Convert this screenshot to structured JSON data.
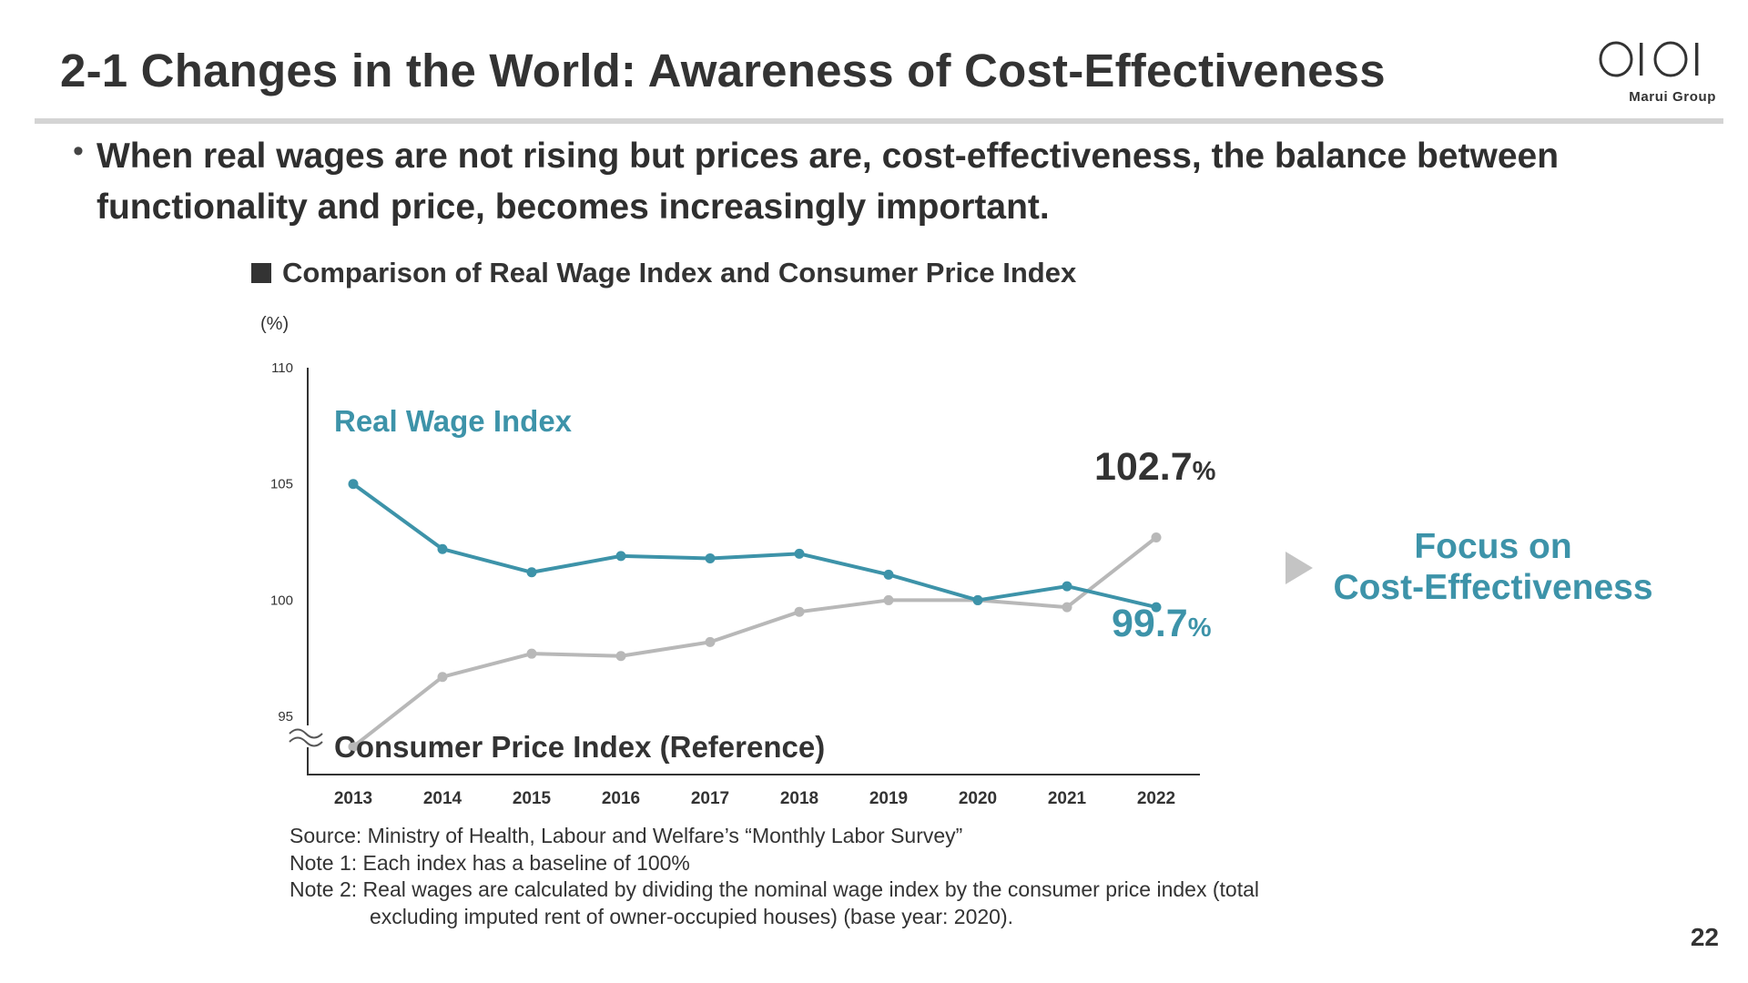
{
  "header": {
    "title": "2-1 Changes in the World: Awareness of Cost-Effectiveness",
    "logo_text": "Marui Group"
  },
  "bullet": {
    "marker": "•",
    "text": "When real wages are not rising but prices are, cost-effectiveness, the balance between functionality and price, becomes increasingly important."
  },
  "chart_heading": "Comparison of Real Wage Index and Consumer Price Index",
  "focus": {
    "line1": "Focus on",
    "line2": "Cost-Effectiveness"
  },
  "notes": {
    "source": "Source: Ministry of Health, Labour and Welfare’s “Monthly Labor Survey”",
    "note1": "Note 1: Each index has a baseline of 100%",
    "note2_line1": "Note 2: Real wages are calculated by dividing the nominal wage index by the consumer price index (total",
    "note2_line2": "excluding imputed rent of owner-occupied houses) (base year: 2020)."
  },
  "page_number": "22",
  "colors": {
    "real_wage": "#3d93a9",
    "cpi": "#b8b8b8",
    "text_dark": "#333333",
    "rule": "#d4d4d4",
    "arrow": "#c4c4c4"
  },
  "chart_data": {
    "type": "line",
    "title": "Comparison of Real Wage Index and Consumer Price Index",
    "unit_label": "(%)",
    "categories": [
      "2013",
      "2014",
      "2015",
      "2016",
      "2017",
      "2018",
      "2019",
      "2020",
      "2021",
      "2022"
    ],
    "y_ticks": [
      95,
      100,
      105,
      110
    ],
    "ylim": [
      92.5,
      110
    ],
    "axis_break": true,
    "grid": false,
    "series": [
      {
        "name": "Real Wage Index",
        "color": "#3d93a9",
        "values": [
          105.0,
          102.2,
          101.2,
          101.9,
          101.8,
          102.0,
          101.1,
          100.0,
          100.6,
          99.7
        ],
        "end_label": "99.7",
        "end_label_unit": "%"
      },
      {
        "name": "Consumer Price Index (Reference)",
        "color": "#b8b8b8",
        "values": [
          93.7,
          96.7,
          97.7,
          97.6,
          98.2,
          99.5,
          100.0,
          100.0,
          99.7,
          102.7
        ],
        "end_label": "102.7",
        "end_label_unit": "%"
      }
    ]
  }
}
